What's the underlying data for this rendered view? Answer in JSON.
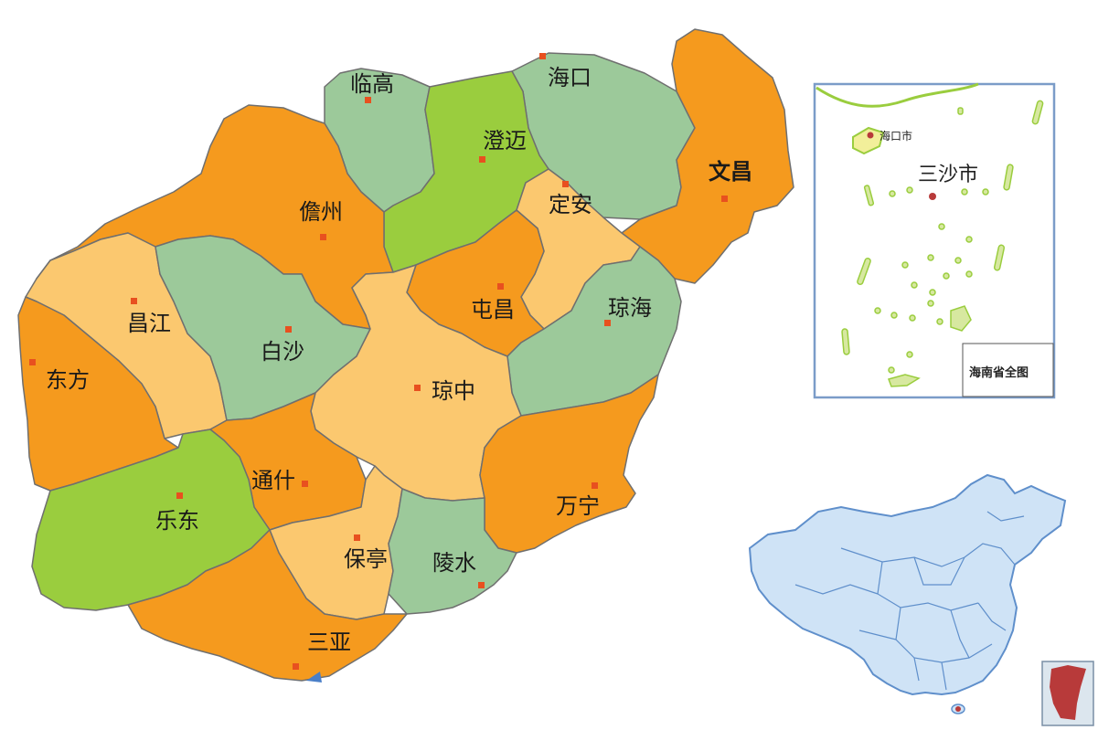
{
  "colors": {
    "orange": "#F59A1E",
    "sand": "#FBC86F",
    "sage": "#9CC99A",
    "lime": "#9ACD3E",
    "city_dot": "#E8501F",
    "inset_border": "#7B9CC8",
    "china_fill": "#CFE3F6",
    "china_border": "#5F8FCB",
    "hainan_highlight": "#B83A3A"
  },
  "regions": [
    {
      "name": "临高",
      "color": "sage"
    },
    {
      "name": "海口",
      "color": "sage"
    },
    {
      "name": "澄迈",
      "color": "lime"
    },
    {
      "name": "文昌",
      "color": "orange"
    },
    {
      "name": "儋州",
      "color": "orange"
    },
    {
      "name": "定安",
      "color": "sand"
    },
    {
      "name": "昌江",
      "color": "sand"
    },
    {
      "name": "白沙",
      "color": "sage"
    },
    {
      "name": "屯昌",
      "color": "orange"
    },
    {
      "name": "琼海",
      "color": "sage"
    },
    {
      "name": "东方",
      "color": "orange"
    },
    {
      "name": "琼中",
      "color": "sand"
    },
    {
      "name": "通什",
      "color": "orange"
    },
    {
      "name": "万宁",
      "color": "orange"
    },
    {
      "name": "乐东",
      "color": "lime"
    },
    {
      "name": "保亭",
      "color": "sand"
    },
    {
      "name": "陵水",
      "color": "sage"
    },
    {
      "name": "三亚",
      "color": "orange"
    }
  ],
  "sansha_inset": {
    "title": "三沙市",
    "haikou_label": "海口市",
    "caption": "海南省全图"
  },
  "china_inset": {
    "highlight_region": "海南"
  }
}
